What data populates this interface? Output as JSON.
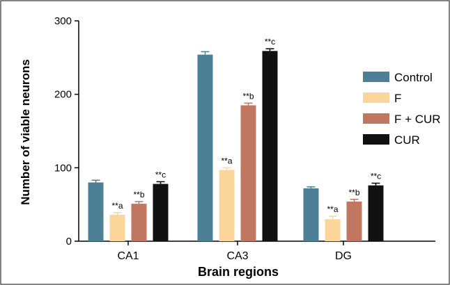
{
  "chart_data": {
    "type": "bar",
    "xlabel": "Brain regions",
    "ylabel": "Number of viable neurons",
    "ylim": [
      0,
      300
    ],
    "yticks": [
      0,
      100,
      200,
      300
    ],
    "categories": [
      "CA1",
      "CA3",
      "DG"
    ],
    "series": [
      {
        "name": "Control",
        "color": "#4d7f97",
        "values": [
          80,
          254,
          72
        ],
        "errors": [
          3,
          4,
          2
        ],
        "labels": [
          "",
          "",
          ""
        ]
      },
      {
        "name": "F",
        "color": "#fbd59a",
        "values": [
          36,
          97,
          30
        ],
        "errors": [
          3,
          3,
          4
        ],
        "labels": [
          "**a",
          "**a",
          "**a"
        ]
      },
      {
        "name": "F + CUR",
        "color": "#c07660",
        "values": [
          51,
          185,
          54
        ],
        "errors": [
          3,
          3,
          3
        ],
        "labels": [
          "**b",
          "**b",
          "**b"
        ]
      },
      {
        "name": "CUR",
        "color": "#111111",
        "values": [
          78,
          259,
          76
        ],
        "errors": [
          3,
          3,
          3
        ],
        "labels": [
          "**c",
          "**c",
          "**c"
        ]
      }
    ],
    "legend_position": "right"
  }
}
